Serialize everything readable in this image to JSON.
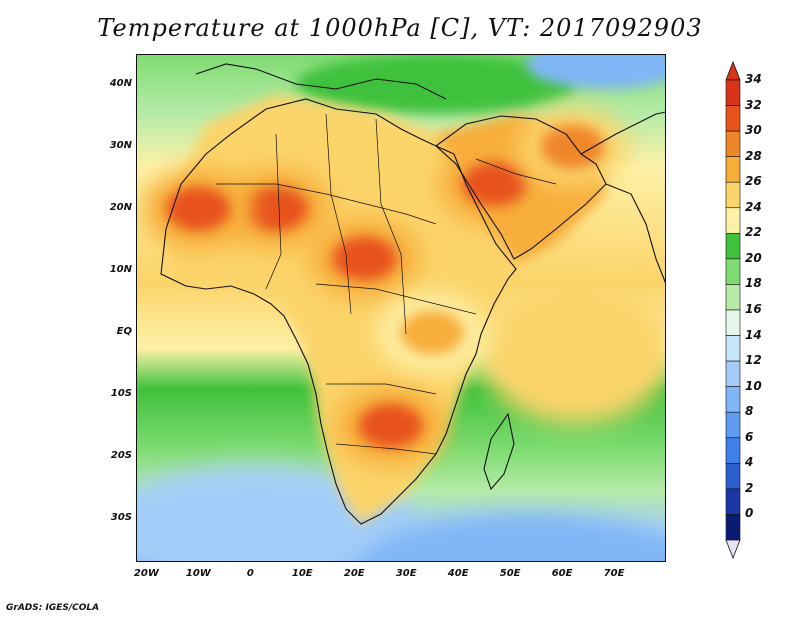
{
  "title": "Temperature at 1000hPa [C], VT: 2017092903",
  "credit": "GrADS: IGES/COLA",
  "map": {
    "lon_range": [
      -22,
      80
    ],
    "lat_range": [
      -37,
      45
    ],
    "lat_labels": [
      {
        "value": 40,
        "text": "40N"
      },
      {
        "value": 30,
        "text": "30N"
      },
      {
        "value": 20,
        "text": "20N"
      },
      {
        "value": 10,
        "text": "10N"
      },
      {
        "value": 0,
        "text": "EQ"
      },
      {
        "value": -10,
        "text": "10S"
      },
      {
        "value": -20,
        "text": "20S"
      },
      {
        "value": -30,
        "text": "30S"
      }
    ],
    "lon_labels": [
      {
        "value": -20,
        "text": "20W"
      },
      {
        "value": -10,
        "text": "10W"
      },
      {
        "value": 0,
        "text": "0"
      },
      {
        "value": 10,
        "text": "10E"
      },
      {
        "value": 20,
        "text": "20E"
      },
      {
        "value": 30,
        "text": "30E"
      },
      {
        "value": 40,
        "text": "40E"
      },
      {
        "value": 50,
        "text": "50E"
      },
      {
        "value": 60,
        "text": "60E"
      },
      {
        "value": 70,
        "text": "70E"
      }
    ],
    "hot_spots": [
      {
        "lon": 5,
        "lat": 20,
        "value": 33
      },
      {
        "lon": 22,
        "lat": 12,
        "value": 32
      },
      {
        "lon": 47,
        "lat": 24,
        "value": 32
      },
      {
        "lon": 27,
        "lat": -15,
        "value": 32
      },
      {
        "lon": -10,
        "lat": 20,
        "value": 32
      },
      {
        "lon": 62,
        "lat": 30,
        "value": 30
      },
      {
        "lon": 35,
        "lat": 0,
        "value": 28
      }
    ]
  },
  "colorbar": {
    "min": 0,
    "max": 34,
    "labels": [
      "34",
      "32",
      "30",
      "28",
      "26",
      "24",
      "22",
      "20",
      "18",
      "16",
      "14",
      "12",
      "10",
      "8",
      "6",
      "4",
      "2",
      "0"
    ],
    "colors": [
      "#0b1a73",
      "#1a37a8",
      "#2b5fd0",
      "#3f80e8",
      "#5e9cf2",
      "#7fb6f6",
      "#a3cdf8",
      "#c7e5fb",
      "#e4f7ea",
      "#b6eba8",
      "#7fdc72",
      "#3fc13c",
      "#fdf1a8",
      "#fbd46a",
      "#f7ad3a",
      "#f0862a",
      "#e8531e",
      "#d8341a"
    ]
  }
}
